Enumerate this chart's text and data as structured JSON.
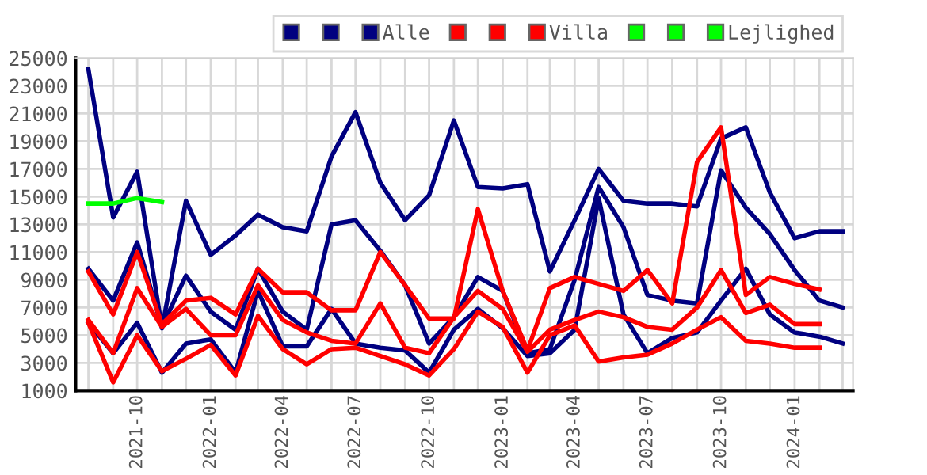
{
  "chart_data": {
    "type": "line",
    "x": [
      "2021-08",
      "2021-09",
      "2021-10",
      "2021-11",
      "2021-12",
      "2022-01",
      "2022-02",
      "2022-03",
      "2022-04",
      "2022-05",
      "2022-06",
      "2022-07",
      "2022-08",
      "2022-09",
      "2022-10",
      "2022-11",
      "2022-12",
      "2023-01",
      "2023-02",
      "2023-03",
      "2023-04",
      "2023-05",
      "2023-06",
      "2023-07",
      "2023-08",
      "2023-09",
      "2023-10",
      "2023-11",
      "2023-12",
      "2024-01",
      "2024-02",
      "2024-03"
    ],
    "series": [
      {
        "color": "#000080",
        "values": [
          24200,
          13500,
          16800,
          5500,
          14700,
          10800,
          12200,
          13700,
          12800,
          12500,
          17900,
          21100,
          16000,
          13300,
          15100,
          20500,
          15700,
          15600,
          15900,
          9600,
          13300,
          17000,
          14700,
          14500,
          14500,
          14300,
          19200,
          20000,
          15300,
          12000,
          12500,
          12500
        ]
      },
      {
        "color": "#000080",
        "values": [
          5900,
          3700,
          5900,
          2300,
          4400,
          4700,
          2300,
          8200,
          4200,
          4200,
          6900,
          4400,
          4100,
          3900,
          2300,
          5400,
          6900,
          5500,
          3500,
          3700,
          5400,
          14900,
          6500,
          3700,
          4800,
          5200,
          7500,
          9800,
          6500,
          5200,
          4900,
          4400
        ]
      },
      {
        "name": "Alle",
        "color": "#000080",
        "values": [
          9800,
          7500,
          11700,
          5600,
          9300,
          6700,
          5400,
          9800,
          6700,
          5400,
          13000,
          13300,
          11100,
          8600,
          4400,
          6300,
          9200,
          8200,
          3700,
          4000,
          9000,
          15700,
          12800,
          7900,
          7500,
          7300,
          16900,
          14200,
          12300,
          9700,
          7500,
          7000
        ]
      },
      {
        "color": "#ff0000",
        "x": [
          "2021-08",
          "2021-09",
          "2021-10",
          "2021-11",
          "2021-12",
          "2022-01",
          "2022-02",
          "2022-03",
          "2022-04",
          "2022-05",
          "2022-06",
          "2022-07",
          "2022-08",
          "2022-09",
          "2022-10",
          "2022-11",
          "2022-12",
          "2023-01",
          "2023-02",
          "2023-03",
          "2023-04",
          "2023-05",
          "2023-06",
          "2023-07",
          "2023-08",
          "2023-09",
          "2023-10",
          "2023-11",
          "2023-12",
          "2024-01",
          "2024-02"
        ],
        "values": [
          9600,
          6500,
          11000,
          5800,
          7500,
          7700,
          6500,
          9800,
          8100,
          8100,
          6800,
          6800,
          11000,
          8600,
          6200,
          6200,
          14100,
          8200,
          3900,
          8400,
          9200,
          8700,
          8200,
          9700,
          7300,
          17500,
          20000,
          7900,
          9200,
          8700,
          8300
        ]
      },
      {
        "color": "#ff0000",
        "x": [
          "2021-08",
          "2021-09",
          "2021-10",
          "2021-11",
          "2021-12",
          "2022-01",
          "2022-02",
          "2022-03",
          "2022-04",
          "2022-05",
          "2022-06",
          "2022-07",
          "2022-08",
          "2022-09",
          "2022-10",
          "2022-11",
          "2022-12",
          "2023-01",
          "2023-02",
          "2023-03",
          "2023-04",
          "2023-05",
          "2023-06",
          "2023-07",
          "2023-08",
          "2023-09",
          "2023-10",
          "2023-11",
          "2023-12",
          "2024-01",
          "2024-02"
        ],
        "values": [
          5900,
          1600,
          5000,
          2400,
          3300,
          4300,
          2100,
          6400,
          4000,
          2900,
          4000,
          4100,
          3500,
          2900,
          2100,
          4000,
          6700,
          5600,
          2300,
          5000,
          5700,
          3100,
          3400,
          3600,
          4400,
          5400,
          6300,
          4600,
          4400,
          4100,
          4100
        ]
      },
      {
        "name": "Villa",
        "color": "#ff0000",
        "x": [
          "2021-08",
          "2021-09",
          "2021-10",
          "2021-11",
          "2021-12",
          "2022-01",
          "2022-02",
          "2022-03",
          "2022-04",
          "2022-05",
          "2022-06",
          "2022-07",
          "2022-08",
          "2022-09",
          "2022-10",
          "2022-11",
          "2022-12",
          "2023-01",
          "2023-02",
          "2023-03",
          "2023-04",
          "2023-05",
          "2023-06",
          "2023-07",
          "2023-08",
          "2023-09",
          "2023-10",
          "2023-11",
          "2023-12",
          "2024-01",
          "2024-02"
        ],
        "values": [
          6100,
          3700,
          8400,
          5600,
          6900,
          5000,
          5000,
          8600,
          6100,
          5200,
          4600,
          4400,
          7300,
          4100,
          3700,
          6300,
          8200,
          6900,
          3800,
          5400,
          6100,
          6700,
          6300,
          5600,
          5400,
          7000,
          9700,
          6600,
          7200,
          5800,
          5800
        ]
      },
      {
        "color": "#00ff00",
        "values": [
          null,
          null,
          null,
          null,
          null,
          null,
          null,
          null,
          null,
          null,
          null,
          null,
          null,
          null,
          null,
          null,
          null,
          null,
          null,
          null,
          null,
          null,
          null,
          null,
          null,
          null,
          null,
          null,
          null,
          null,
          null,
          null
        ]
      },
      {
        "color": "#00ff00",
        "values": [
          null,
          null,
          null,
          null,
          null,
          null,
          null,
          null,
          null,
          null,
          null,
          null,
          null,
          null,
          null,
          null,
          null,
          null,
          null,
          null,
          null,
          null,
          null,
          null,
          null,
          null,
          null,
          null,
          null,
          null,
          null,
          null
        ]
      },
      {
        "name": "Lejlighed",
        "color": "#00ff00",
        "x": [
          "2021-08",
          "2021-09",
          "2021-10",
          "2021-11"
        ],
        "values": [
          14500,
          14500,
          14900,
          14600
        ]
      }
    ],
    "xlim": [
      "2021-07-16",
      "2024-03-14"
    ],
    "xticks": [
      {
        "value": "2021-10",
        "label": "2021-10"
      },
      {
        "value": "2022-01",
        "label": "2022-01"
      },
      {
        "value": "2022-04",
        "label": "2022-04"
      },
      {
        "value": "2022-07",
        "label": "2022-07"
      },
      {
        "value": "2022-10",
        "label": "2022-10"
      },
      {
        "value": "2023-01",
        "label": "2023-01"
      },
      {
        "value": "2023-04",
        "label": "2023-04"
      },
      {
        "value": "2023-07",
        "label": "2023-07"
      },
      {
        "value": "2023-10",
        "label": "2023-10"
      },
      {
        "value": "2024-01",
        "label": "2024-01"
      }
    ],
    "ylim": [
      1000,
      25000
    ],
    "yticks": [
      1000,
      3000,
      5000,
      7000,
      9000,
      11000,
      13000,
      15000,
      17000,
      19000,
      21000,
      23000,
      25000
    ],
    "grid": true,
    "legend": "top right",
    "marker": "none",
    "line_style": "solid"
  }
}
